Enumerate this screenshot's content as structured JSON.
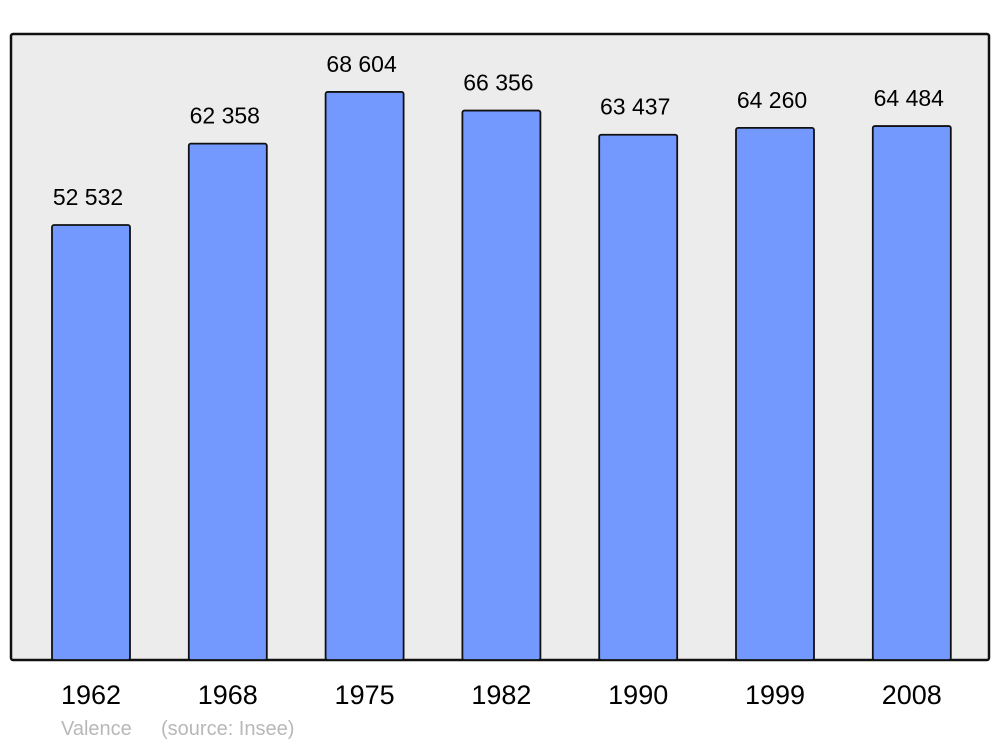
{
  "chart_data": {
    "type": "bar",
    "categories": [
      "1962",
      "1968",
      "1975",
      "1982",
      "1990",
      "1999",
      "2008"
    ],
    "values": [
      52532,
      62358,
      68604,
      66356,
      63437,
      64260,
      64484
    ],
    "value_labels": [
      "52 532",
      "62 358",
      "68 604",
      "66 356",
      "63 437",
      "64 260",
      "64 484"
    ],
    "ylim": [
      0,
      75600
    ],
    "grid": false,
    "colors": {
      "bar": "#7399ff",
      "plot_background": "#ececec",
      "frame": "#111111"
    }
  },
  "caption": {
    "place": "Valence",
    "source": "(source: Insee)"
  }
}
